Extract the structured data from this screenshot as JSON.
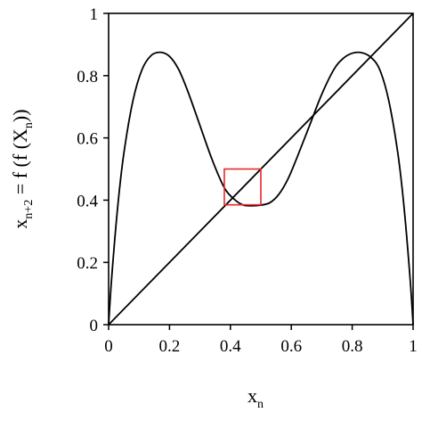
{
  "chart_data": {
    "type": "line",
    "xlabel": {
      "main": "x",
      "sub": "n"
    },
    "ylabel": {
      "parts": [
        {
          "text": "x",
          "sub": false
        },
        {
          "text": "n+2",
          "sub": true
        },
        {
          "text": " = f (f (X",
          "sub": false
        },
        {
          "text": "n",
          "sub": true
        },
        {
          "text": "))",
          "sub": false
        }
      ]
    },
    "xlim": [
      0,
      1
    ],
    "ylim": [
      0,
      1
    ],
    "xticks": [
      {
        "value": 0,
        "label": "0"
      },
      {
        "value": 0.2,
        "label": "0.2"
      },
      {
        "value": 0.4,
        "label": "0.4"
      },
      {
        "value": 0.6,
        "label": "0.6"
      },
      {
        "value": 0.8,
        "label": "0.8"
      },
      {
        "value": 1,
        "label": "1"
      }
    ],
    "yticks": [
      {
        "value": 0,
        "label": "0"
      },
      {
        "value": 0.2,
        "label": "0.2"
      },
      {
        "value": 0.4,
        "label": "0.4"
      },
      {
        "value": 0.6,
        "label": "0.6"
      },
      {
        "value": 0.8,
        "label": "0.8"
      },
      {
        "value": 1,
        "label": "1"
      }
    ],
    "grid": false,
    "series": [
      {
        "kind": "curve",
        "color": "#000000",
        "x": [
          0,
          0.01,
          0.03,
          0.05,
          0.08,
          0.11,
          0.14,
          0.17,
          0.2,
          0.23,
          0.26,
          0.3,
          0.34,
          0.38,
          0.41,
          0.44,
          0.47,
          0.5,
          0.53,
          0.56,
          0.59,
          0.62,
          0.66,
          0.7,
          0.74,
          0.77,
          0.8,
          0.83,
          0.86,
          0.89,
          0.92,
          0.95,
          0.97,
          0.99,
          1
        ],
        "y": [
          0,
          0.15,
          0.38,
          0.55,
          0.72,
          0.82,
          0.865,
          0.875,
          0.862,
          0.82,
          0.75,
          0.64,
          0.53,
          0.44,
          0.405,
          0.385,
          0.382,
          0.384,
          0.392,
          0.42,
          0.47,
          0.54,
          0.64,
          0.74,
          0.82,
          0.855,
          0.872,
          0.874,
          0.86,
          0.82,
          0.72,
          0.55,
          0.38,
          0.15,
          0
        ]
      },
      {
        "kind": "diagonal",
        "color": "#000000",
        "x": [
          0,
          1
        ],
        "y": [
          0,
          1
        ]
      }
    ],
    "annotations": [
      {
        "kind": "rectangle",
        "color": "#e8262b",
        "x": [
          0.38,
          0.5
        ],
        "y": [
          0.385,
          0.5
        ]
      }
    ]
  }
}
